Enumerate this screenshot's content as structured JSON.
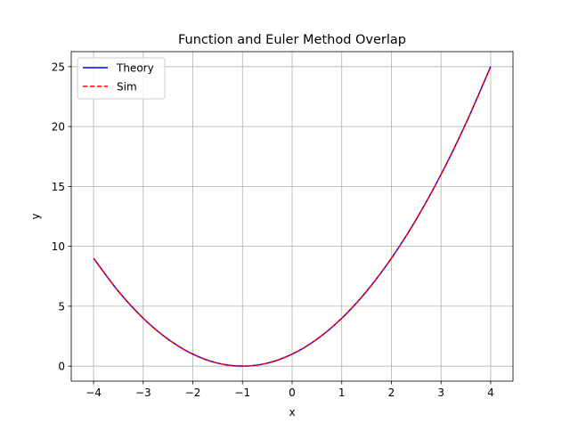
{
  "chart_data": {
    "type": "line",
    "title": "Function and Euler Method Overlap",
    "xlabel": "x",
    "ylabel": "y",
    "xlim": [
      -4.45,
      4.45
    ],
    "ylim": [
      -1.25,
      26.25
    ],
    "xticks": [
      -4,
      -3,
      -2,
      -1,
      0,
      1,
      2,
      3,
      4
    ],
    "xtick_labels": [
      "−4",
      "−3",
      "−2",
      "−1",
      "0",
      "1",
      "2",
      "3",
      "4"
    ],
    "yticks": [
      0,
      5,
      10,
      15,
      20,
      25
    ],
    "ytick_labels": [
      "0",
      "5",
      "10",
      "15",
      "20",
      "25"
    ],
    "grid": true,
    "legend_position": "upper-left",
    "series": [
      {
        "name": "Theory",
        "color": "#0000ff",
        "style": "solid",
        "x": [
          -4,
          -3.5,
          -3,
          -2.5,
          -2,
          -1.5,
          -1,
          -0.5,
          0,
          0.5,
          1,
          1.5,
          2,
          2.5,
          3,
          3.5,
          4
        ],
        "y": [
          9,
          6.25,
          4,
          2.25,
          1,
          0.25,
          0,
          0.25,
          1,
          2.25,
          4,
          6.25,
          9,
          12.25,
          16,
          20.25,
          25
        ]
      },
      {
        "name": "Sim",
        "color": "#ff0000",
        "style": "dashed",
        "x": [
          -4,
          -3.5,
          -3,
          -2.5,
          -2,
          -1.5,
          -1,
          -0.5,
          0,
          0.5,
          1,
          1.5,
          2,
          2.5,
          3,
          3.5,
          4
        ],
        "y": [
          9,
          6.25,
          4,
          2.25,
          1,
          0.25,
          0,
          0.25,
          1,
          2.25,
          4,
          6.25,
          9,
          12.25,
          16,
          20.25,
          25
        ]
      }
    ]
  }
}
